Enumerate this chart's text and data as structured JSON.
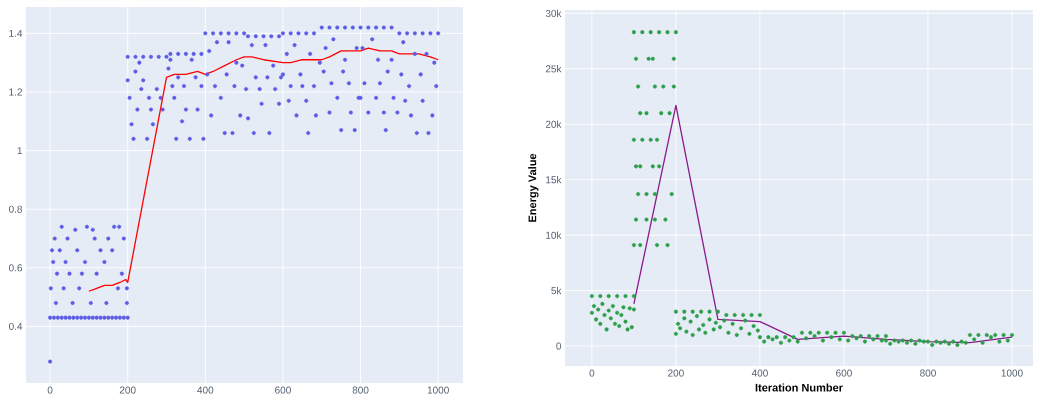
{
  "chart_data": [
    {
      "type": "scatter",
      "grid": true,
      "xlim": [
        -62,
        1064
      ],
      "ylim": [
        0.207,
        1.49
      ],
      "xticks": [
        0,
        200,
        400,
        600,
        800,
        1000
      ],
      "yticks": [
        0.4,
        0.6,
        0.8,
        1,
        1.2,
        1.4
      ],
      "series": [
        {
          "type": "scatter",
          "marker": "circle",
          "color": "#5c5ce6",
          "x": [
            0,
            10,
            20,
            30,
            40,
            50,
            60,
            70,
            80,
            90,
            100,
            110,
            120,
            130,
            140,
            150,
            160,
            170,
            180,
            190,
            200,
            0,
            2,
            5,
            8,
            12,
            15,
            18,
            25,
            30,
            35,
            40,
            45,
            50,
            58,
            65,
            70,
            75,
            82,
            90,
            95,
            105,
            110,
            115,
            120,
            130,
            140,
            145,
            150,
            160,
            165,
            175,
            178,
            185,
            190,
            198,
            198,
            200,
            220,
            240,
            260,
            280,
            300,
            200,
            205,
            210,
            215,
            220,
            225,
            230,
            235,
            240,
            250,
            255,
            260,
            265,
            275,
            285,
            290,
            310,
            330,
            350,
            370,
            390,
            305,
            310,
            315,
            320,
            325,
            330,
            340,
            345,
            350,
            360,
            365,
            375,
            380,
            390,
            395,
            400,
            420,
            440,
            460,
            480,
            500,
            405,
            410,
            415,
            425,
            430,
            440,
            450,
            455,
            460,
            470,
            475,
            480,
            490,
            495,
            510,
            530,
            550,
            570,
            590,
            505,
            510,
            520,
            525,
            530,
            540,
            545,
            555,
            560,
            565,
            575,
            580,
            590,
            595,
            600,
            620,
            640,
            660,
            680,
            600,
            610,
            615,
            620,
            630,
            635,
            645,
            650,
            660,
            665,
            670,
            680,
            685,
            695,
            700,
            720,
            740,
            760,
            780,
            705,
            710,
            720,
            725,
            730,
            740,
            750,
            755,
            760,
            770,
            775,
            785,
            790,
            795,
            800,
            820,
            840,
            860,
            880,
            800,
            805,
            810,
            820,
            830,
            840,
            845,
            850,
            860,
            865,
            870,
            880,
            885,
            895,
            900,
            920,
            940,
            960,
            980,
            1000,
            905,
            910,
            915,
            925,
            930,
            940,
            945,
            955,
            960,
            970,
            975,
            985,
            990,
            995
          ],
          "values": [
            0.43,
            0.43,
            0.43,
            0.43,
            0.43,
            0.43,
            0.43,
            0.43,
            0.43,
            0.43,
            0.43,
            0.43,
            0.43,
            0.43,
            0.43,
            0.43,
            0.43,
            0.43,
            0.43,
            0.43,
            0.43,
            0.28,
            0.53,
            0.66,
            0.62,
            0.7,
            0.48,
            0.58,
            0.66,
            0.74,
            0.53,
            0.62,
            0.7,
            0.58,
            0.48,
            0.73,
            0.66,
            0.53,
            0.58,
            0.62,
            0.74,
            0.48,
            0.73,
            0.7,
            0.58,
            0.66,
            0.62,
            0.48,
            0.7,
            0.66,
            0.74,
            0.53,
            0.74,
            0.58,
            0.7,
            0.48,
            0.53,
            1.32,
            1.32,
            1.32,
            1.32,
            1.32,
            1.32,
            1.24,
            1.18,
            1.09,
            1.04,
            1.27,
            1.14,
            1.3,
            1.21,
            1.24,
            1.04,
            1.18,
            1.14,
            1.09,
            1.21,
            1.18,
            1.14,
            1.33,
            1.33,
            1.33,
            1.33,
            1.33,
            1.28,
            1.31,
            1.22,
            1.18,
            1.04,
            1.25,
            1.1,
            1.22,
            1.14,
            1.04,
            1.31,
            1.25,
            1.14,
            1.22,
            1.04,
            1.4,
            1.4,
            1.4,
            1.4,
            1.4,
            1.4,
            1.26,
            1.34,
            1.12,
            1.22,
            1.37,
            1.18,
            1.06,
            1.26,
            1.37,
            1.06,
            1.22,
            1.3,
            1.12,
            1.29,
            1.39,
            1.39,
            1.39,
            1.39,
            1.39,
            1.21,
            1.11,
            1.36,
            1.06,
            1.25,
            1.21,
            1.16,
            1.36,
            1.25,
            1.06,
            1.29,
            1.21,
            1.16,
            1.25,
            1.4,
            1.4,
            1.4,
            1.4,
            1.4,
            1.26,
            1.33,
            1.17,
            1.22,
            1.36,
            1.12,
            1.26,
            1.22,
            1.17,
            1.06,
            1.33,
            1.22,
            1.12,
            1.3,
            1.42,
            1.42,
            1.42,
            1.42,
            1.42,
            1.27,
            1.35,
            1.13,
            1.23,
            1.38,
            1.18,
            1.07,
            1.27,
            1.31,
            1.23,
            1.13,
            1.07,
            1.35,
            1.18,
            1.42,
            1.42,
            1.42,
            1.42,
            1.42,
            1.18,
            1.35,
            1.23,
            1.13,
            1.38,
            1.18,
            1.31,
            1.23,
            1.13,
            1.07,
            1.27,
            1.31,
            1.18,
            1.13,
            1.4,
            1.4,
            1.4,
            1.4,
            1.4,
            1.4,
            1.26,
            1.37,
            1.17,
            1.22,
            1.12,
            1.33,
            1.06,
            1.26,
            1.17,
            1.33,
            1.06,
            1.12,
            1.3,
            1.22
          ]
        },
        {
          "type": "line",
          "marker": "none",
          "color": "#ff0000",
          "x": [
            100,
            120,
            140,
            160,
            180,
            195,
            200,
            300,
            320,
            350,
            380,
            400,
            420,
            450,
            480,
            500,
            520,
            550,
            600,
            620,
            650,
            700,
            720,
            750,
            800,
            820,
            850,
            880,
            900,
            950,
            980,
            1000
          ],
          "values": [
            0.52,
            0.53,
            0.54,
            0.54,
            0.55,
            0.56,
            0.55,
            1.25,
            1.26,
            1.26,
            1.27,
            1.26,
            1.27,
            1.29,
            1.31,
            1.32,
            1.32,
            1.31,
            1.3,
            1.3,
            1.31,
            1.31,
            1.32,
            1.34,
            1.34,
            1.35,
            1.34,
            1.34,
            1.33,
            1.33,
            1.32,
            1.31
          ]
        }
      ]
    },
    {
      "type": "scatter",
      "grid": true,
      "xlabel": "Iteration Number",
      "ylabel": "Energy Value",
      "xlim": [
        -64,
        1050
      ],
      "ylim": [
        -1800,
        30300
      ],
      "xticks": [
        0,
        200,
        400,
        600,
        800,
        1000
      ],
      "yticks": [
        {
          "value": 0,
          "label": "0"
        },
        {
          "value": 5000,
          "label": "5k"
        },
        {
          "value": 10000,
          "label": "10k"
        },
        {
          "value": 15000,
          "label": "15k"
        },
        {
          "value": 20000,
          "label": "20k"
        },
        {
          "value": 25000,
          "label": "25k"
        },
        {
          "value": 30000,
          "label": "30k"
        }
      ],
      "series": [
        {
          "type": "scatter",
          "marker": "circle",
          "color": "#2e9e4a",
          "x": [
            0,
            20,
            40,
            60,
            80,
            100,
            0,
            5,
            10,
            15,
            20,
            25,
            30,
            35,
            40,
            45,
            50,
            55,
            60,
            65,
            70,
            75,
            80,
            85,
            90,
            95,
            100,
            100,
            120,
            140,
            160,
            180,
            200,
            105,
            135,
            145,
            195,
            110,
            150,
            170,
            195,
            115,
            130,
            165,
            185,
            100,
            120,
            140,
            155,
            105,
            115,
            145,
            160,
            110,
            130,
            150,
            190,
            105,
            130,
            150,
            175,
            100,
            115,
            155,
            180,
            200,
            220,
            240,
            260,
            280,
            300,
            200,
            205,
            210,
            220,
            225,
            235,
            240,
            250,
            255,
            265,
            270,
            280,
            290,
            295,
            320,
            340,
            360,
            380,
            400,
            305,
            315,
            325,
            335,
            345,
            355,
            365,
            375,
            385,
            395,
            400,
            420,
            440,
            460,
            480,
            410,
            430,
            450,
            470,
            490,
            500,
            520,
            540,
            560,
            580,
            600,
            510,
            530,
            550,
            570,
            590,
            620,
            640,
            660,
            680,
            700,
            610,
            630,
            650,
            670,
            690,
            700,
            720,
            740,
            760,
            780,
            710,
            730,
            750,
            770,
            790,
            800,
            820,
            840,
            860,
            880,
            810,
            830,
            850,
            870,
            890,
            900,
            920,
            940,
            960,
            980,
            1000,
            910,
            930,
            950,
            970,
            990
          ],
          "values": [
            4500,
            4500,
            4500,
            4500,
            4500,
            4500,
            3000,
            3600,
            2400,
            3300,
            2000,
            3800,
            2800,
            1500,
            3200,
            2500,
            3600,
            2000,
            3000,
            1800,
            2800,
            3500,
            2200,
            1500,
            3400,
            1700,
            3300,
            28300,
            28300,
            28300,
            28300,
            28300,
            28300,
            25900,
            25900,
            25900,
            25900,
            23400,
            23400,
            23400,
            23400,
            21000,
            21000,
            21000,
            21000,
            18600,
            18600,
            18600,
            18600,
            16200,
            16200,
            16200,
            16200,
            13700,
            13700,
            13700,
            13700,
            11400,
            11400,
            11400,
            11400,
            9100,
            9100,
            9100,
            9100,
            3100,
            3100,
            3100,
            3100,
            3100,
            3100,
            1100,
            2000,
            1600,
            2500,
            1300,
            2200,
            1000,
            2700,
            1500,
            1900,
            1200,
            2400,
            1500,
            2100,
            2800,
            2800,
            2800,
            2800,
            2800,
            1700,
            2300,
            1200,
            2000,
            1000,
            1600,
            2300,
            1100,
            1800,
            1400,
            800,
            800,
            800,
            800,
            800,
            400,
            600,
            300,
            500,
            400,
            1200,
            1200,
            1200,
            1200,
            1200,
            1200,
            700,
            900,
            500,
            800,
            600,
            900,
            900,
            900,
            900,
            900,
            500,
            700,
            400,
            600,
            500,
            500,
            500,
            500,
            500,
            500,
            200,
            400,
            300,
            200,
            400,
            400,
            400,
            400,
            400,
            400,
            100,
            300,
            200,
            100,
            300,
            1000,
            1000,
            1000,
            1000,
            1000,
            1000,
            600,
            300,
            800,
            400,
            500
          ]
        },
        {
          "type": "line",
          "marker": "none",
          "color": "#8b1a8b",
          "x": [
            100,
            200,
            300,
            400,
            490,
            600,
            700,
            800,
            900,
            1000
          ],
          "values": [
            3800,
            21700,
            2400,
            2200,
            600,
            900,
            600,
            400,
            300,
            800
          ]
        }
      ]
    }
  ]
}
